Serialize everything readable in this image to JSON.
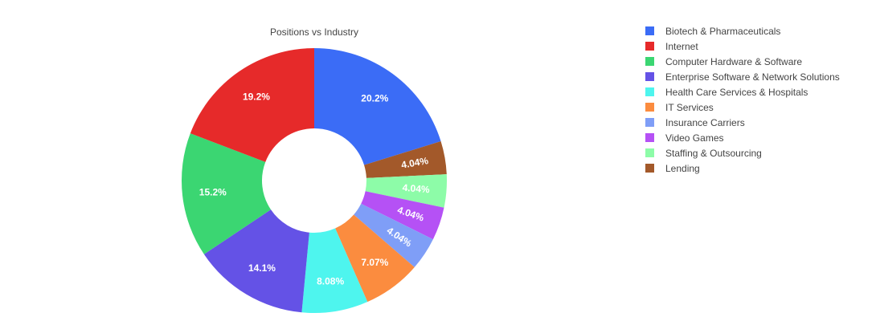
{
  "chart_data": {
    "type": "pie",
    "title": "Positions vs Industry",
    "hole": true,
    "legend_position": "right",
    "slices": [
      {
        "label": "Biotech & Pharmaceuticals",
        "value": 20.2,
        "text": "20.2%",
        "color": "#3b6cf6"
      },
      {
        "label": "Lending",
        "value": 4.04,
        "text": "4.04%",
        "color": "#a3592a"
      },
      {
        "label": "Staffing & Outsourcing",
        "value": 4.04,
        "text": "4.04%",
        "color": "#8dfca8"
      },
      {
        "label": "Video Games",
        "value": 4.04,
        "text": "4.04%",
        "color": "#b551f5"
      },
      {
        "label": "Insurance Carriers",
        "value": 4.04,
        "text": "4.04%",
        "color": "#7f9ef7"
      },
      {
        "label": "IT Services",
        "value": 7.07,
        "text": "7.07%",
        "color": "#fb8c3f"
      },
      {
        "label": "Health Care Services & Hospitals",
        "value": 8.08,
        "text": "8.08%",
        "color": "#4ef5ee"
      },
      {
        "label": "Enterprise Software & Network Solutions",
        "value": 14.1,
        "text": "14.1%",
        "color": "#6452e6"
      },
      {
        "label": "Computer Hardware & Software",
        "value": 15.2,
        "text": "15.2%",
        "color": "#3bd672"
      },
      {
        "label": "Internet",
        "value": 19.2,
        "text": "19.2%",
        "color": "#e62a2a"
      }
    ],
    "legend": [
      {
        "label": "Biotech & Pharmaceuticals",
        "color": "#3b6cf6"
      },
      {
        "label": "Internet",
        "color": "#e62a2a"
      },
      {
        "label": "Computer Hardware & Software",
        "color": "#3bd672"
      },
      {
        "label": "Enterprise Software & Network Solutions",
        "color": "#6452e6"
      },
      {
        "label": "Health Care Services & Hospitals",
        "color": "#4ef5ee"
      },
      {
        "label": "IT Services",
        "color": "#fb8c3f"
      },
      {
        "label": "Insurance Carriers",
        "color": "#7f9ef7"
      },
      {
        "label": "Video Games",
        "color": "#b551f5"
      },
      {
        "label": "Staffing & Outsourcing",
        "color": "#8dfca8"
      },
      {
        "label": "Lending",
        "color": "#a3592a"
      }
    ]
  }
}
